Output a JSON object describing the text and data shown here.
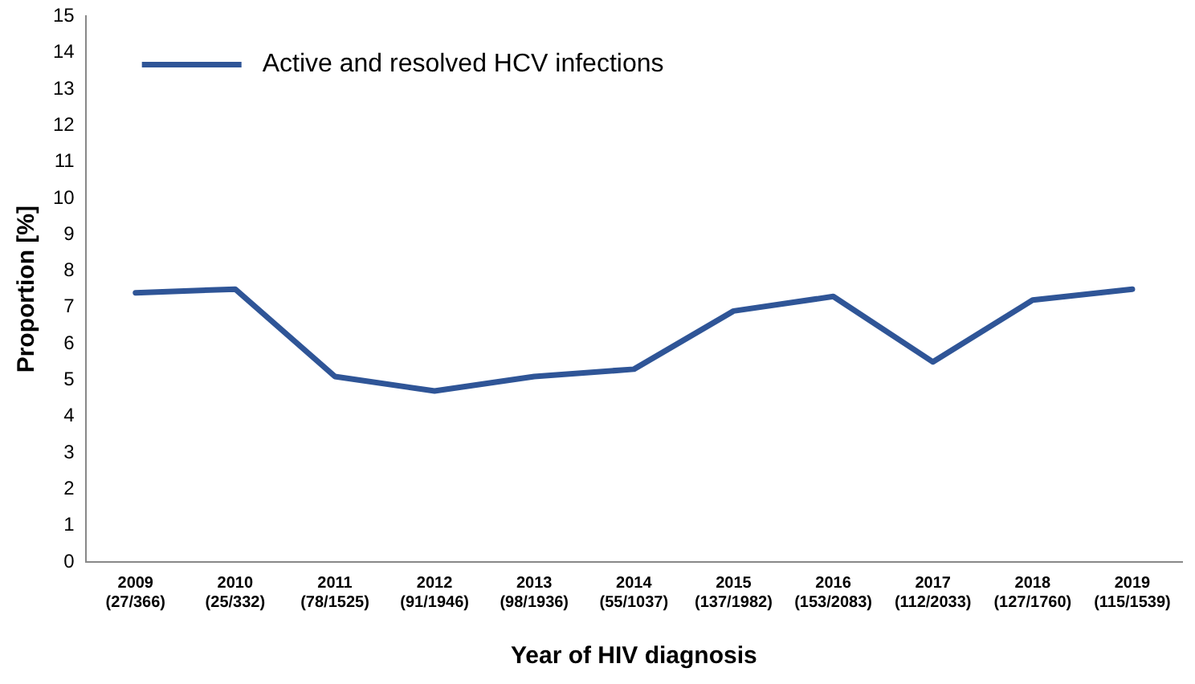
{
  "chart_data": {
    "type": "line",
    "xlabel": "Year of HIV diagnosis",
    "ylabel": "Proportion [%]",
    "categories": [
      "2009\n(27/366)",
      "2010\n(25/332)",
      "2011\n(78/1525)",
      "2012\n(91/1946)",
      "2013\n(98/1936)",
      "2014\n(55/1037)",
      "2015\n(137/1982)",
      "2016\n(153/2083)",
      "2017\n(112/2033)",
      "2018\n(127/1760)",
      "2019\n(115/1539)"
    ],
    "series": [
      {
        "name": "Active and resolved HCV infections",
        "color": "#2f5597",
        "values": [
          7.4,
          7.5,
          5.1,
          4.7,
          5.1,
          5.3,
          6.9,
          7.3,
          5.5,
          7.2,
          7.5
        ]
      }
    ],
    "ylim": [
      0,
      15
    ],
    "yticks": [
      0,
      1,
      2,
      3,
      4,
      5,
      6,
      7,
      8,
      9,
      10,
      11,
      12,
      13,
      14,
      15
    ],
    "grid": false,
    "legend": "top left",
    "marker": "none",
    "line_style": "solid"
  }
}
